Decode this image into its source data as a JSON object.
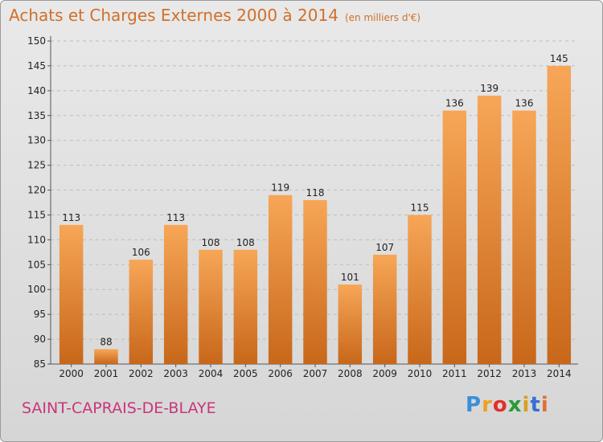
{
  "header": {
    "title": "Achats et Charges Externes 2000 à 2014",
    "unit": "(en milliers d'€)"
  },
  "footer": {
    "commune": "SAINT-CAPRAIS-DE-BLAYE",
    "logo_letters": [
      "P",
      "r",
      "o",
      "x",
      "i",
      "t",
      "i"
    ],
    "logo_colors": [
      "#3a8fd6",
      "#f0a020",
      "#e0302a",
      "#2a9a3a",
      "#d6a020",
      "#3a6fd0",
      "#e07030"
    ]
  },
  "colors": {
    "bar_top": "#f7a657",
    "bar_bottom": "#c8671a",
    "grid": "#bdbdbd",
    "axis": "#555555"
  },
  "chart_data": {
    "type": "bar",
    "title": "Achats et Charges Externes 2000 à 2014",
    "subtitle": "(en milliers d'€)",
    "xlabel": "",
    "ylabel": "",
    "categories": [
      "2000",
      "2001",
      "2002",
      "2003",
      "2004",
      "2005",
      "2006",
      "2007",
      "2008",
      "2009",
      "2010",
      "2011",
      "2012",
      "2013",
      "2014"
    ],
    "values": [
      113,
      88,
      106,
      113,
      108,
      108,
      119,
      118,
      101,
      107,
      115,
      136,
      139,
      136,
      145
    ],
    "ylim": [
      85,
      150
    ],
    "yticks": [
      85,
      90,
      95,
      100,
      105,
      110,
      115,
      120,
      125,
      130,
      135,
      140,
      145,
      150
    ],
    "grid": true,
    "legend": "none"
  }
}
